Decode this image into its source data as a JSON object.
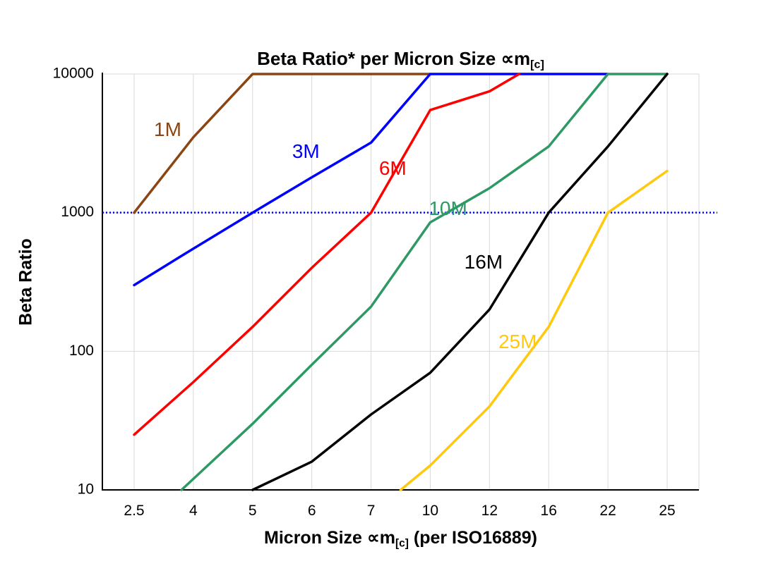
{
  "title": {
    "main": "Beta Ratio* per Micron Size ∝m",
    "sub": "[c]"
  },
  "y_axis": {
    "title": "Beta Ratio",
    "tick_labels": [
      "10000",
      "1000",
      "100",
      "10"
    ],
    "tick_values": [
      10000,
      1000,
      100,
      10
    ]
  },
  "x_axis": {
    "title_pre": "Micron Size ∝m",
    "title_sub": "[c]",
    "title_post": " (per ISO16889)",
    "tick_labels": [
      "2.5",
      "4",
      "5",
      "6",
      "7",
      "10",
      "12",
      "16",
      "22",
      "25"
    ]
  },
  "chart_data": {
    "type": "line",
    "title": "Beta Ratio* per Micron Size ∝m[c]",
    "xlabel": "Micron Size ∝m[c] (per ISO16889)",
    "ylabel": "Beta Ratio",
    "x_categories": [
      2.5,
      4,
      5,
      6,
      7,
      10,
      12,
      16,
      22,
      25
    ],
    "y_scale": "log",
    "ylim": [
      10,
      10000
    ],
    "grid": true,
    "grid_color": "#D9D9D9",
    "reference_line": {
      "y": 1000,
      "color": "#0000FF",
      "style": "dotted"
    },
    "series": [
      {
        "name": "1M",
        "color": "#8B4513",
        "points": [
          [
            2.5,
            1000
          ],
          [
            4,
            3500
          ],
          [
            5,
            10000
          ],
          [
            10,
            10000
          ]
        ]
      },
      {
        "name": "3M",
        "color": "#0000FF",
        "points": [
          [
            2.5,
            300
          ],
          [
            4,
            550
          ],
          [
            5,
            1000
          ],
          [
            6,
            1800
          ],
          [
            7,
            3200
          ],
          [
            10,
            10000
          ],
          [
            22,
            10000
          ]
        ]
      },
      {
        "name": "6M",
        "color": "#FF0000",
        "points": [
          [
            2.5,
            25
          ],
          [
            4,
            60
          ],
          [
            5,
            150
          ],
          [
            6,
            400
          ],
          [
            7,
            1000
          ],
          [
            10,
            5500
          ],
          [
            12,
            7500
          ],
          [
            14,
            10000
          ]
        ]
      },
      {
        "name": "10M",
        "color": "#2E9964",
        "points": [
          [
            3.7,
            10
          ],
          [
            5,
            30
          ],
          [
            6,
            80
          ],
          [
            7,
            210
          ],
          [
            10,
            850
          ],
          [
            12,
            1500
          ],
          [
            16,
            3000
          ],
          [
            22,
            10000
          ],
          [
            25,
            10000
          ]
        ]
      },
      {
        "name": "16M",
        "color": "#000000",
        "points": [
          [
            5,
            10
          ],
          [
            6,
            16
          ],
          [
            7,
            35
          ],
          [
            10,
            70
          ],
          [
            12,
            200
          ],
          [
            16,
            1000
          ],
          [
            22,
            3000
          ],
          [
            25,
            10000
          ]
        ]
      },
      {
        "name": "25M",
        "color": "#FFC90E",
        "points": [
          [
            8.5,
            10
          ],
          [
            10,
            15
          ],
          [
            12,
            40
          ],
          [
            16,
            150
          ],
          [
            22,
            1000
          ],
          [
            25,
            2000
          ]
        ]
      }
    ],
    "annotations": [
      {
        "text": "1M",
        "color": "#8B4513",
        "micron": 3.35,
        "beta": 3900
      },
      {
        "text": "3M",
        "color": "#0000FF",
        "micron": 5.9,
        "beta": 2700
      },
      {
        "text": "6M",
        "color": "#FF0000",
        "micron": 8.1,
        "beta": 2050
      },
      {
        "text": "10M",
        "color": "#2E9964",
        "micron": 10.6,
        "beta": 1050
      },
      {
        "text": "16M",
        "color": "#000000",
        "micron": 11.8,
        "beta": 430
      },
      {
        "text": "25M",
        "color": "#FFC90E",
        "micron": 13.9,
        "beta": 115
      }
    ]
  }
}
